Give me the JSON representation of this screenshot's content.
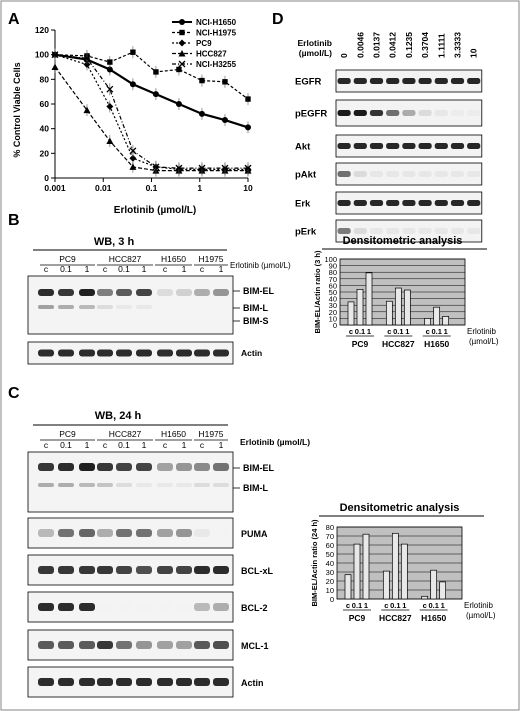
{
  "frame_color": "#999999",
  "panel_a": {
    "letter": "A",
    "ylabel": "% Control Viable Cells",
    "xlabel": "Erlotinib (µmol/L)",
    "yticks": [
      "0",
      "20",
      "40",
      "60",
      "80",
      "100",
      "120"
    ],
    "xticks": [
      "0.001",
      "0.01",
      "0.1",
      "1",
      "10"
    ],
    "legend": [
      "NCI-H1650",
      "NCI-H1975",
      "PC9",
      "HCC827",
      "NCI-H3255"
    ]
  },
  "panel_b": {
    "letter": "B",
    "wb_title": "WB, 3 h",
    "cells": [
      "PC9",
      "HCC827",
      "H1650",
      "H1975"
    ],
    "lanes": [
      "c",
      "0.1",
      "1",
      "c",
      "0.1",
      "1",
      "c",
      "1",
      "c",
      "1"
    ],
    "treatment": "Erlotinib (µmol/L)",
    "bands": [
      "BIM-EL",
      "BIM-L",
      "BIM-S"
    ],
    "actin": "Actin",
    "densitometry": {
      "title": "Densitometric analysis",
      "ylabel": "BIM-EL/Actin ratio (3 h)",
      "yticks": [
        "0",
        "10",
        "20",
        "30",
        "40",
        "50",
        "60",
        "70",
        "80",
        "90",
        "100"
      ],
      "lanes": [
        "c",
        "0.1",
        "1",
        "c",
        "0.1",
        "1",
        "c",
        "0.1",
        "1"
      ],
      "groups": [
        "PC9",
        "HCC827",
        "H1650"
      ],
      "x_title": [
        "Erlotinib",
        "(µmol/L)"
      ]
    }
  },
  "panel_c": {
    "letter": "C",
    "wb_title": "WB, 24 h",
    "cells": [
      "PC9",
      "HCC827",
      "H1650",
      "H1975"
    ],
    "lanes": [
      "c",
      "0.1",
      "1",
      "c",
      "0.1",
      "1",
      "c",
      "1",
      "c",
      "1"
    ],
    "treatment": "Erlotinib (µmol/L)",
    "bands": [
      "BIM-EL",
      "BIM-L"
    ],
    "blots": [
      "PUMA",
      "BCL-xL",
      "BCL-2",
      "MCL-1",
      "Actin"
    ],
    "densitometry": {
      "title": "Densitometric analysis",
      "ylabel": "BIM-EL/Actin ratio (24 h)",
      "yticks": [
        "0",
        "10",
        "20",
        "30",
        "40",
        "50",
        "60",
        "70",
        "80"
      ],
      "lanes": [
        "c",
        "0.1",
        "1",
        "c",
        "0.1",
        "1",
        "c",
        "0.1",
        "1"
      ],
      "groups": [
        "PC9",
        "HCC827",
        "H1650"
      ],
      "x_title": [
        "Erlotinib",
        "(µmol/L)"
      ]
    }
  },
  "panel_d": {
    "letter": "D",
    "treatment": [
      "Erlotinib",
      "(µmol/L)"
    ],
    "doses": [
      "0",
      "0.0046",
      "0.0137",
      "0.0412",
      "0.1235",
      "0.3704",
      "1.1111",
      "3.3333",
      "10"
    ],
    "blots": [
      "EGFR",
      "pEGFR",
      "Akt",
      "pAkt",
      "Erk",
      "pErk"
    ]
  },
  "chart_data": [
    {
      "type": "line",
      "title": "",
      "xlabel": "Erlotinib (µmol/L)",
      "ylabel": "% Control Viable Cells",
      "x_scale": "log",
      "xlim": [
        0.001,
        10
      ],
      "ylim": [
        0,
        120
      ],
      "legend_position": "top-right",
      "series": [
        {
          "name": "NCI-H1650",
          "x": [
            0.001,
            0.0046,
            0.0137,
            0.0412,
            0.1235,
            0.3704,
            1.1111,
            3.3333,
            10
          ],
          "y": [
            100,
            96,
            88,
            76,
            68,
            60,
            52,
            47,
            41
          ]
        },
        {
          "name": "NCI-H1975",
          "x": [
            0.001,
            0.0046,
            0.0137,
            0.0412,
            0.1235,
            0.3704,
            1.1111,
            3.3333,
            10
          ],
          "y": [
            100,
            99,
            94,
            102,
            86,
            88,
            79,
            78,
            64
          ]
        },
        {
          "name": "PC9",
          "x": [
            0.001,
            0.0046,
            0.0137,
            0.0412,
            0.1235,
            0.3704,
            1.1111,
            3.3333,
            10
          ],
          "y": [
            100,
            92,
            58,
            16,
            9,
            7,
            7,
            7,
            7
          ]
        },
        {
          "name": "HCC827",
          "x": [
            0.001,
            0.0046,
            0.0137,
            0.0412,
            0.1235,
            0.3704,
            1.1111,
            3.3333,
            10
          ],
          "y": [
            90,
            55,
            30,
            9,
            6,
            6,
            6,
            6,
            6
          ]
        },
        {
          "name": "NCI-H3255",
          "x": [
            0.001,
            0.0046,
            0.0137,
            0.0412,
            0.1235,
            0.3704,
            1.1111,
            3.3333,
            10
          ],
          "y": [
            100,
            97,
            72,
            22,
            9,
            8,
            8,
            8,
            8
          ]
        }
      ]
    },
    {
      "type": "bar",
      "title": "Densitometric analysis",
      "ylabel": "BIM-EL/Actin ratio (3 h)",
      "ylim": [
        0,
        100
      ],
      "categories": [
        "c",
        "0.1",
        "1",
        "c",
        "0.1",
        "1",
        "c",
        "0.1",
        "1"
      ],
      "groups": [
        "PC9",
        "HCC827",
        "H1650"
      ],
      "values": [
        35,
        54,
        79,
        36,
        56,
        53,
        10,
        27,
        13
      ]
    },
    {
      "type": "bar",
      "title": "Densitometric analysis",
      "ylabel": "BIM-EL/Actin ratio (24 h)",
      "ylim": [
        0,
        80
      ],
      "categories": [
        "c",
        "0.1",
        "1",
        "c",
        "0.1",
        "1",
        "c",
        "0.1",
        "1"
      ],
      "groups": [
        "PC9",
        "HCC827",
        "H1650"
      ],
      "values": [
        27,
        61,
        72,
        31,
        73,
        61,
        3,
        32,
        19
      ]
    }
  ]
}
